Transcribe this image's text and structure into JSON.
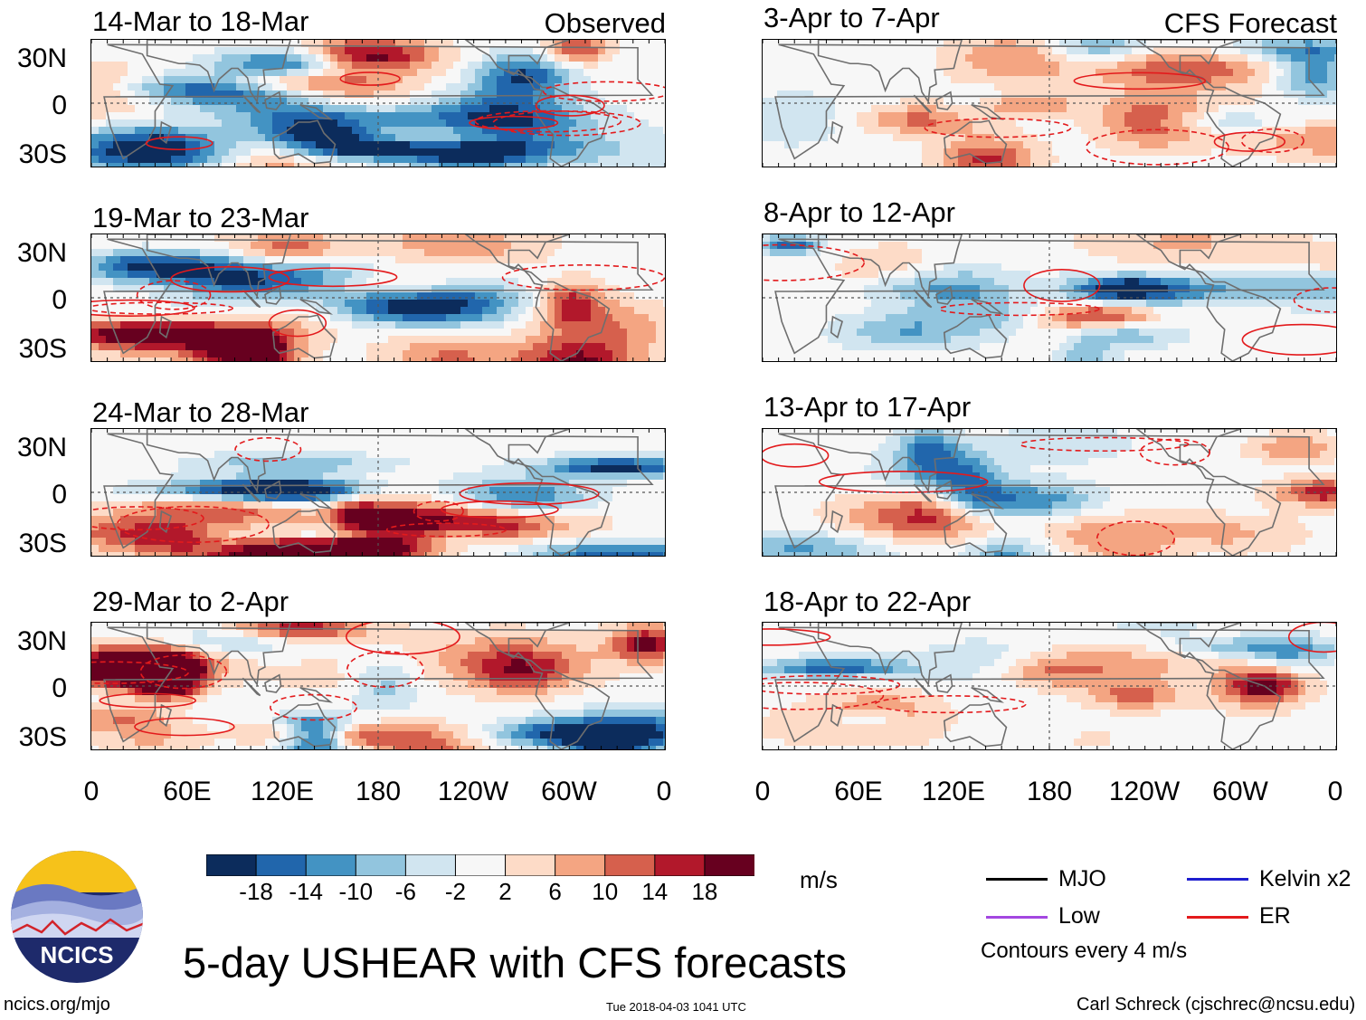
{
  "figure_title": "5-day USHEAR with CFS forecasts",
  "units": "m/s",
  "contour_note": "Contours every 4 m/s",
  "site": "ncics.org/mjo",
  "timestamp": "Tue 2018-04-03 1041 UTC",
  "author": "Carl Schreck (cjschrec@ncsu.edu)",
  "logo_text": "NCICS",
  "columns": {
    "left_label": "Observed",
    "right_label": "CFS Forecast"
  },
  "lat_labels": [
    "30N",
    "0",
    "30S"
  ],
  "lon_labels": [
    "0",
    "60E",
    "120E",
    "180",
    "120W",
    "60W",
    "0"
  ],
  "colorbar": {
    "ticks": [
      "-18",
      "-14",
      "-10",
      "-6",
      "-2",
      "2",
      "6",
      "10",
      "14",
      "18"
    ],
    "colors": [
      "#0c2c5c",
      "#2166ac",
      "#4393c3",
      "#92c5de",
      "#d1e5f0",
      "#f7f7f7",
      "#fddbc7",
      "#f4a582",
      "#d6604d",
      "#b2182b",
      "#67001f"
    ]
  },
  "legend": [
    {
      "label": "MJO",
      "color": "#000000"
    },
    {
      "label": "Kelvin x2",
      "color": "#1f1fcf"
    },
    {
      "label": "Low",
      "color": "#a347e0"
    },
    {
      "label": "ER",
      "color": "#e31a1c"
    }
  ],
  "chart_data": {
    "type": "heatmap",
    "variable": "5-day mean upper-level zonal wind shear anomaly (USHEAR)",
    "units": "m/s",
    "colorbar_levels": [
      -18,
      -14,
      -10,
      -6,
      -2,
      2,
      6,
      10,
      14,
      18
    ],
    "x_axis": {
      "range": [
        "0",
        "0"
      ],
      "ticks": [
        "0",
        "60E",
        "120E",
        "180",
        "120W",
        "60W",
        "0"
      ]
    },
    "y_axis": {
      "range": [
        "40S",
        "40N"
      ],
      "ticks": [
        "30N",
        "0",
        "30S"
      ]
    },
    "contour_interval_mps": 4,
    "panels": [
      {
        "title": "14-Mar to 18-Mar",
        "source": "Observed"
      },
      {
        "title": "19-Mar to 23-Mar",
        "source": "Observed"
      },
      {
        "title": "24-Mar to 28-Mar",
        "source": "Observed"
      },
      {
        "title": "29-Mar to 2-Apr",
        "source": "Observed"
      },
      {
        "title": "3-Apr to 7-Apr",
        "source": "CFS Forecast"
      },
      {
        "title": "8-Apr to 12-Apr",
        "source": "CFS Forecast"
      },
      {
        "title": "13-Apr to 17-Apr",
        "source": "CFS Forecast"
      },
      {
        "title": "18-Apr to 22-Apr",
        "source": "CFS Forecast"
      }
    ]
  }
}
